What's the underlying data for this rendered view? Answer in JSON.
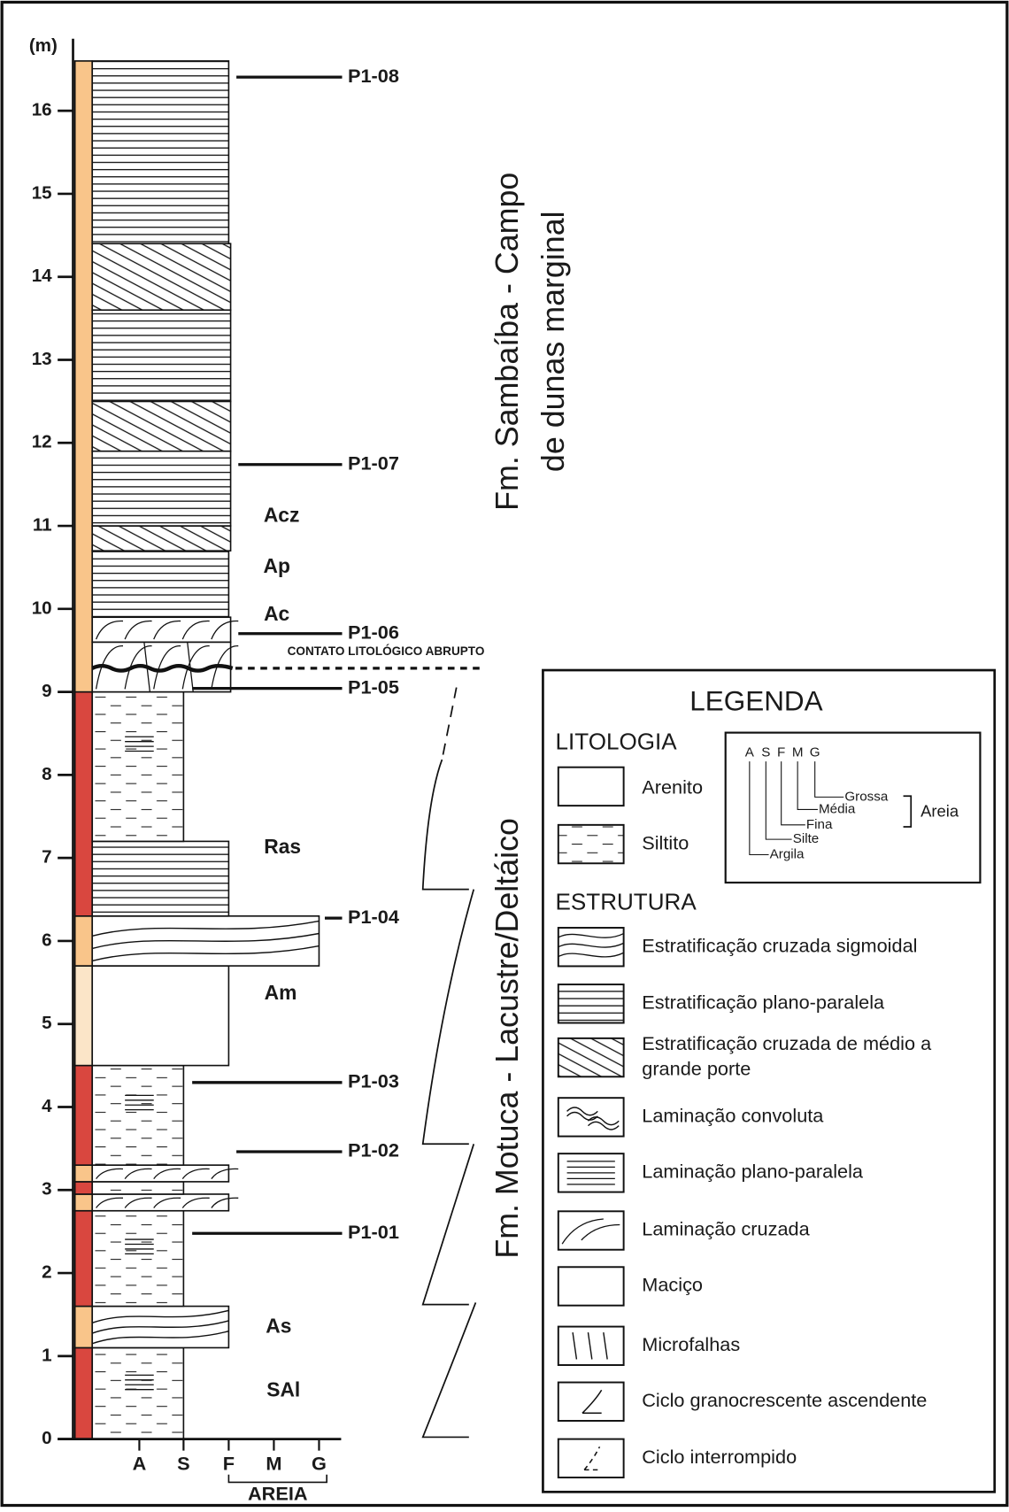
{
  "axis": {
    "unit": "(m)",
    "ticks": [
      0,
      1,
      2,
      3,
      4,
      5,
      6,
      7,
      8,
      9,
      10,
      11,
      12,
      13,
      14,
      15,
      16
    ]
  },
  "grain_scale": {
    "labels": [
      "A",
      "S",
      "F",
      "M",
      "G"
    ],
    "group": "AREIA"
  },
  "facies": [
    "SAl",
    "As",
    "Am",
    "Ras",
    "Ac",
    "Ap",
    "Acz"
  ],
  "samples": [
    "P1-01",
    "P1-02",
    "P1-03",
    "P1-04",
    "P1-05",
    "P1-06",
    "P1-07",
    "P1-08"
  ],
  "contact": "CONTATO LITOLÓGICO ABRUPTO",
  "formations": [
    [
      "Fm. Sambaíba - Campo",
      "de dunas marginal"
    ],
    [
      "Fm. Motuca - Lacustre/Deltáico"
    ]
  ],
  "legend": {
    "title": "LEGENDA",
    "lithology_heading": "LITOLOGIA",
    "lithology": [
      "Arenito",
      "Siltito"
    ],
    "grain_inset": {
      "letters": [
        "A",
        "S",
        "F",
        "M",
        "G"
      ],
      "names": [
        "Grossa",
        "Média",
        "Fina",
        "Silte",
        "Argila"
      ],
      "group": "Areia"
    },
    "structure_heading": "ESTRUTURA",
    "structures": [
      [
        "Estratificação cruzada sigmoidal"
      ],
      [
        "Estratificação plano-paralela"
      ],
      [
        "Estratificação cruzada de médio a",
        "grande porte"
      ],
      [
        "Laminação convoluta"
      ],
      [
        "Laminação plano-paralela"
      ],
      [
        "Laminação cruzada"
      ],
      [
        "Maciço"
      ],
      [
        "Microfalhas"
      ],
      [
        "Ciclo granocrescente ascendente"
      ],
      [
        "Ciclo interrompido"
      ]
    ]
  }
}
